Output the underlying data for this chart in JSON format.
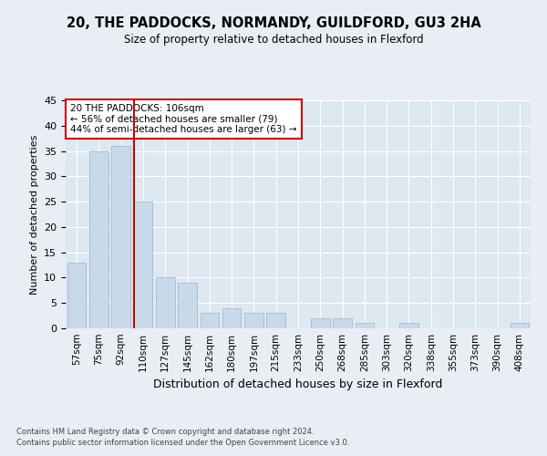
{
  "title": "20, THE PADDOCKS, NORMANDY, GUILDFORD, GU3 2HA",
  "subtitle": "Size of property relative to detached houses in Flexford",
  "xlabel": "Distribution of detached houses by size in Flexford",
  "ylabel": "Number of detached properties",
  "categories": [
    "57sqm",
    "75sqm",
    "92sqm",
    "110sqm",
    "127sqm",
    "145sqm",
    "162sqm",
    "180sqm",
    "197sqm",
    "215sqm",
    "233sqm",
    "250sqm",
    "268sqm",
    "285sqm",
    "303sqm",
    "320sqm",
    "338sqm",
    "355sqm",
    "373sqm",
    "390sqm",
    "408sqm"
  ],
  "values": [
    13,
    35,
    36,
    25,
    10,
    9,
    3,
    4,
    3,
    3,
    0,
    2,
    2,
    1,
    0,
    1,
    0,
    0,
    0,
    0,
    1
  ],
  "bar_color": "#c8daea",
  "bar_edgecolor": "#a8c0d8",
  "marker_index": 3,
  "marker_color": "#cc0000",
  "ylim": [
    0,
    45
  ],
  "yticks": [
    0,
    5,
    10,
    15,
    20,
    25,
    30,
    35,
    40,
    45
  ],
  "annotation_title": "20 THE PADDOCKS: 106sqm",
  "annotation_line1": "← 56% of detached houses are smaller (79)",
  "annotation_line2": "44% of semi-detached houses are larger (63) →",
  "footer1": "Contains HM Land Registry data © Crown copyright and database right 2024.",
  "footer2": "Contains public sector information licensed under the Open Government Licence v3.0.",
  "bg_color": "#e8eef4",
  "plot_bg_color": "#dde8f0"
}
